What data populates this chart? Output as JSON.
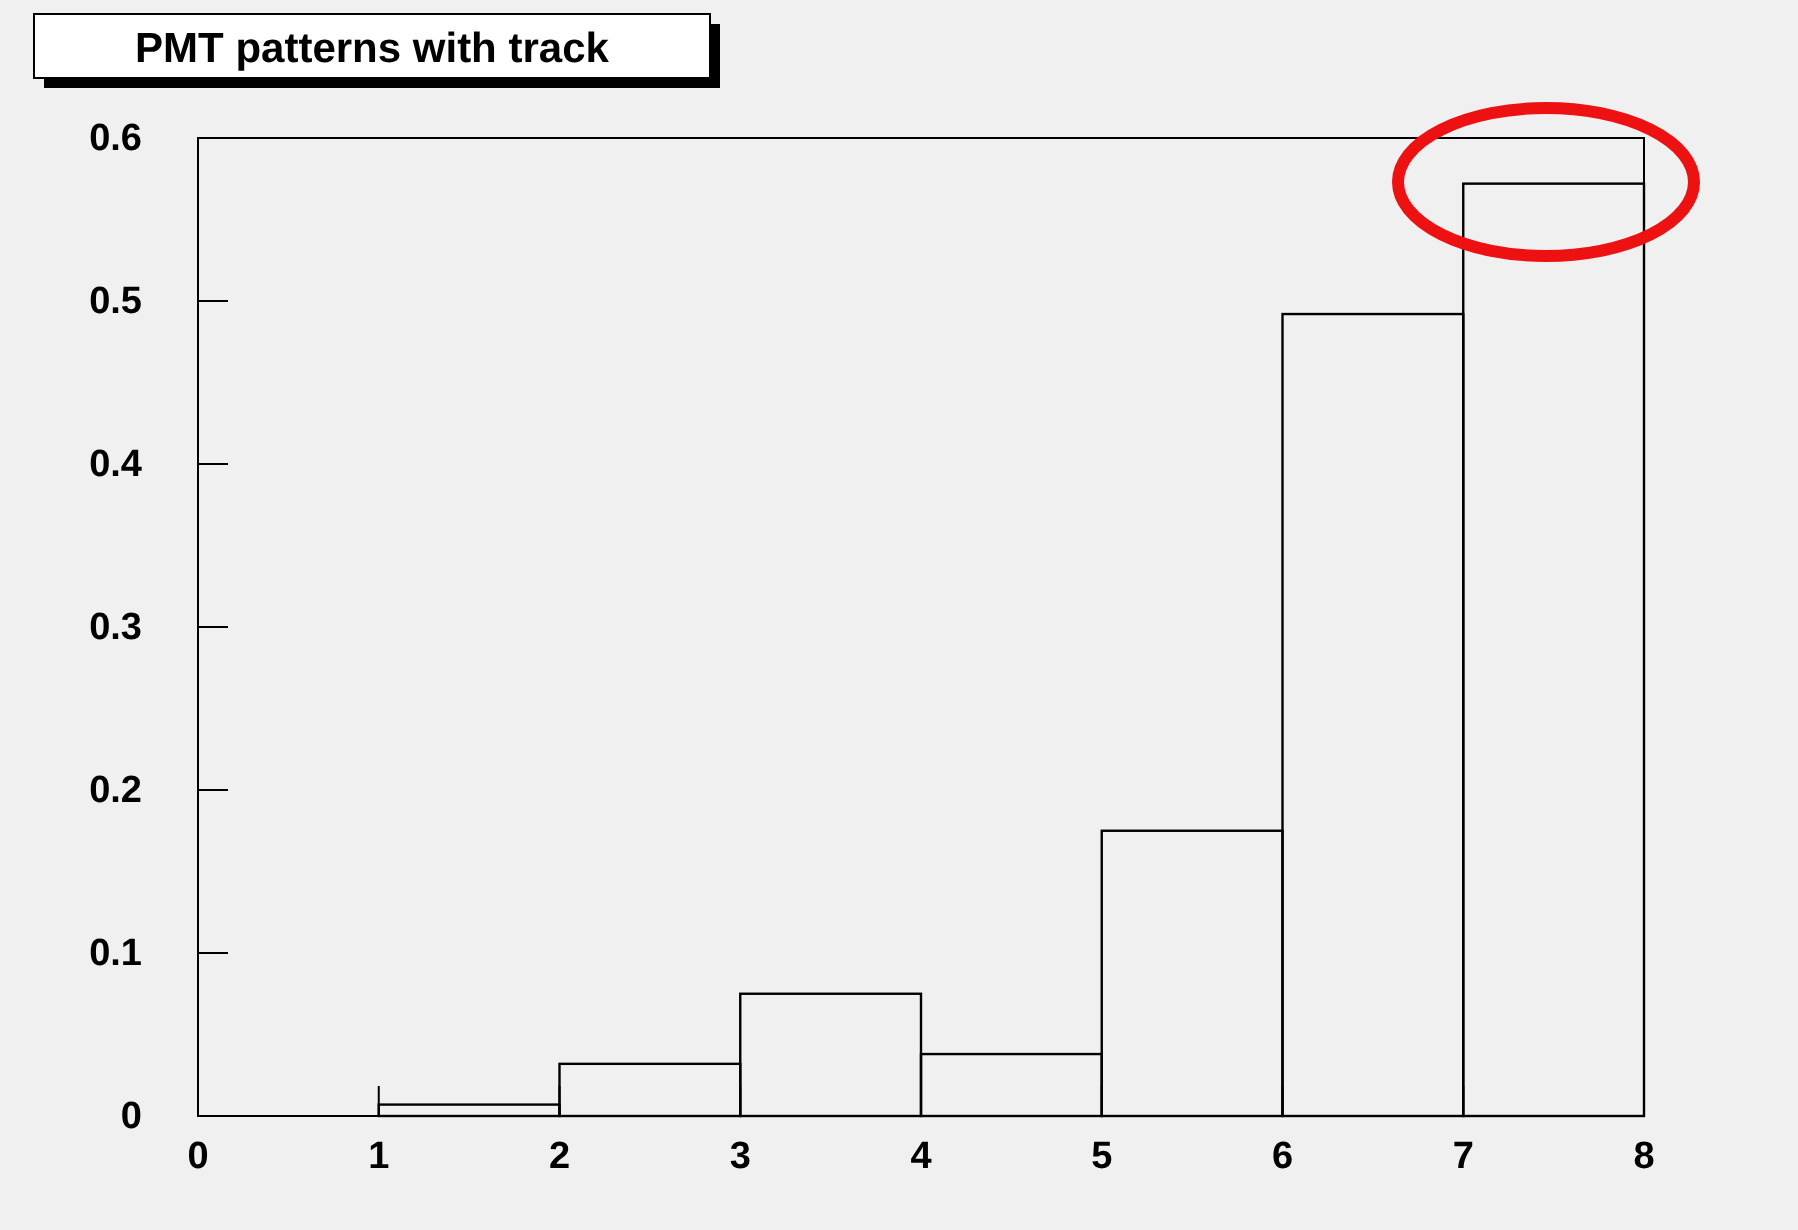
{
  "chart_data": {
    "type": "histogram",
    "title": "PMT patterns with track",
    "bins": [
      0,
      1,
      2,
      3,
      4,
      5,
      6,
      7,
      8
    ],
    "values": [
      0,
      0.007,
      0.032,
      0.075,
      0.038,
      0.175,
      0.492,
      0.572
    ],
    "color": "#000000",
    "xlim": [
      0,
      8
    ],
    "ylim": [
      0,
      0.6
    ],
    "xticks": [
      0,
      1,
      2,
      3,
      4,
      5,
      6,
      7,
      8
    ],
    "yticks": [
      0,
      0.1,
      0.2,
      0.3,
      0.4,
      0.5,
      0.6
    ],
    "grid": false,
    "legend": false
  }
}
